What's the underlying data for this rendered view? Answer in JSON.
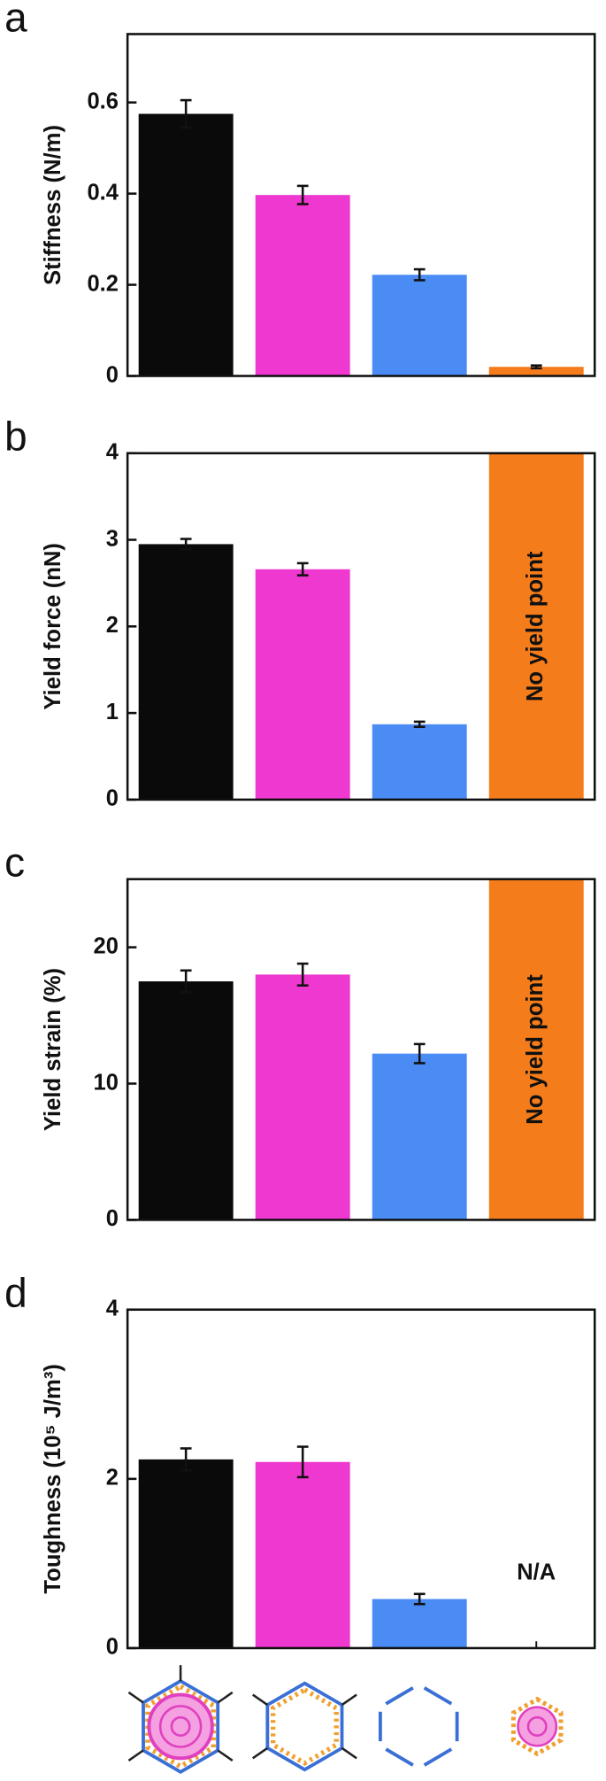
{
  "chart_data": [
    {
      "type": "bar",
      "panel": "a",
      "ylabel": "Stiffness (N/m)",
      "values": [
        0.575,
        0.397,
        0.222,
        0.02
      ],
      "errors": [
        0.03,
        0.02,
        0.012,
        0.003
      ],
      "colors": [
        "#0a0a0a",
        "#ee38cf",
        "#4a8cf3",
        "#f57c1a"
      ],
      "ylim": [
        0,
        0.75
      ],
      "yticks": [
        0,
        0.2,
        0.4,
        0.6
      ]
    },
    {
      "type": "bar",
      "panel": "b",
      "ylabel": "Yield force (nN)",
      "values": [
        2.95,
        2.66,
        0.87,
        null
      ],
      "errors": [
        0.06,
        0.07,
        0.03,
        null
      ],
      "colors": [
        "#0a0a0a",
        "#ee38cf",
        "#4a8cf3",
        "#f57c1a"
      ],
      "annotation": "No yield point",
      "annotation_fill": true,
      "ylim": [
        0,
        4
      ],
      "yticks": [
        0,
        1,
        2,
        3,
        4
      ]
    },
    {
      "type": "bar",
      "panel": "c",
      "ylabel": "Yield strain (%)",
      "values": [
        17.5,
        18.0,
        12.2,
        null
      ],
      "errors": [
        0.8,
        0.8,
        0.7,
        null
      ],
      "colors": [
        "#0a0a0a",
        "#ee38cf",
        "#4a8cf3",
        "#f57c1a"
      ],
      "annotation": "No yield point",
      "annotation_fill": true,
      "ylim": [
        0,
        25
      ],
      "yticks": [
        0,
        10,
        20
      ]
    },
    {
      "type": "bar",
      "panel": "d",
      "ylabel": "Toughness (10⁵ J/m³)",
      "values": [
        2.23,
        2.2,
        0.58,
        null
      ],
      "errors": [
        0.13,
        0.18,
        0.06,
        null
      ],
      "colors": [
        "#0a0a0a",
        "#ee38cf",
        "#4a8cf3",
        "#f57c1a"
      ],
      "annotation": "N/A",
      "annotation_fill": false,
      "ylim": [
        0,
        4
      ],
      "yticks": [
        0,
        2,
        4
      ]
    }
  ]
}
